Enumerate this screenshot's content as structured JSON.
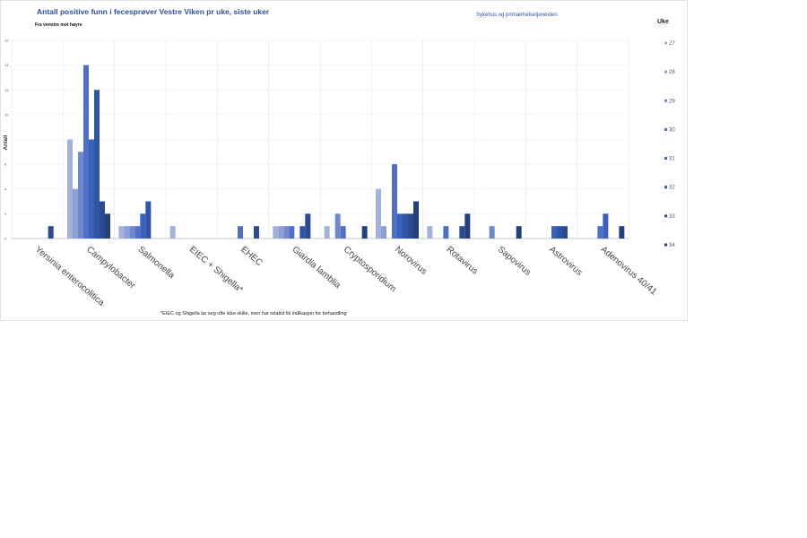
{
  "chart_data": {
    "type": "bar",
    "title": "Antall positive funn i fecesprøver Vestre Viken pr uke, siste uker",
    "subtitle": "Fra venstre mot høyre",
    "right_title": "Sykehus og primærhelsetjenesten",
    "ylabel": "Antall",
    "xlabel": "",
    "ylim": [
      0,
      16
    ],
    "yticks": [
      0,
      2,
      4,
      6,
      8,
      10,
      12,
      14,
      16
    ],
    "grid": true,
    "legend_title": "Uke",
    "legend_position": "right",
    "footnote": "*EIEC og Shigella lar seg ofte ikke skille, men har relativt lik indikasjon for behandling",
    "categories": [
      "Yersinia enterocolitica",
      "Campylobacter",
      "Salmonella",
      "EIEC + Shigella*",
      "EHEC",
      "Giardia lamblia",
      "Cryptosporidium",
      "Norovirus",
      "Rotavirus",
      "Sapovirus",
      "Astrovirus",
      "Adenovirus 40/41"
    ],
    "series": [
      {
        "name": "27",
        "color": "#a4b1d9",
        "values": [
          0,
          8,
          1,
          1,
          0,
          1,
          1,
          4,
          1,
          0,
          0,
          0
        ]
      },
      {
        "name": "28",
        "color": "#8d9fd4",
        "values": [
          0,
          4,
          1,
          0,
          0,
          1,
          0,
          1,
          0,
          0,
          0,
          0
        ]
      },
      {
        "name": "29",
        "color": "#7189cc",
        "values": [
          0,
          7,
          1,
          0,
          0,
          1,
          2,
          0,
          0,
          1,
          0,
          0
        ]
      },
      {
        "name": "30",
        "color": "#4f70c4",
        "values": [
          0,
          14,
          1,
          0,
          1,
          1,
          1,
          6,
          1,
          0,
          0,
          1
        ]
      },
      {
        "name": "31",
        "color": "#3a62bb",
        "values": [
          0,
          8,
          2,
          0,
          0,
          0,
          0,
          2,
          0,
          0,
          1,
          2
        ]
      },
      {
        "name": "32",
        "color": "#2f55a8",
        "values": [
          0,
          12,
          3,
          0,
          0,
          1,
          0,
          2,
          0,
          0,
          1,
          0
        ]
      },
      {
        "name": "33",
        "color": "#2b4a8f",
        "values": [
          1,
          3,
          0,
          0,
          1,
          2,
          0,
          2,
          1,
          0,
          1,
          0
        ]
      },
      {
        "name": "34",
        "color": "#253f78",
        "values": [
          0,
          2,
          0,
          0,
          0,
          0,
          1,
          3,
          2,
          1,
          0,
          1
        ]
      }
    ]
  }
}
